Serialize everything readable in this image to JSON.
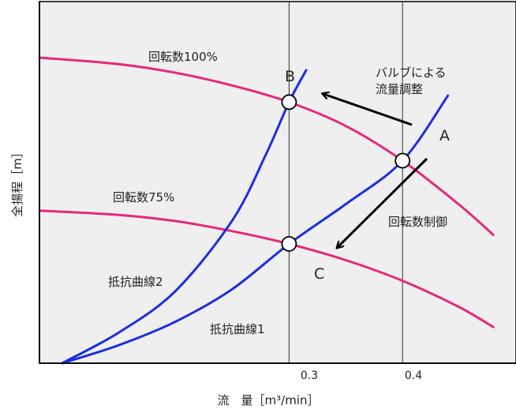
{
  "chart_data": {
    "type": "line",
    "title": "",
    "xlabel": "流　量［m³/min］",
    "ylabel": "全揚程［m］",
    "x_ticks": [
      {
        "value": 0.3,
        "label": "0.3"
      },
      {
        "value": 0.4,
        "label": "0.4"
      }
    ],
    "xlim": [
      0.08,
      0.5
    ],
    "ylim": [
      0,
      1
    ],
    "grid": false,
    "series": [
      {
        "name": "回転数100%",
        "kind": "pump",
        "color": "#e6287a",
        "x": [
          0.08,
          0.15,
          0.2,
          0.25,
          0.3,
          0.35,
          0.4,
          0.45,
          0.48
        ],
        "y": [
          0.845,
          0.827,
          0.803,
          0.768,
          0.722,
          0.656,
          0.56,
          0.438,
          0.355
        ]
      },
      {
        "name": "回転数75%",
        "kind": "pump",
        "color": "#e6287a",
        "x": [
          0.08,
          0.15,
          0.2,
          0.25,
          0.3,
          0.35,
          0.4,
          0.45,
          0.48
        ],
        "y": [
          0.422,
          0.41,
          0.393,
          0.365,
          0.33,
          0.285,
          0.228,
          0.155,
          0.1
        ]
      },
      {
        "name": "抵抗曲線1",
        "kind": "resistance",
        "color": "#1c2ee0",
        "x": [
          0.1,
          0.15,
          0.2,
          0.25,
          0.3,
          0.35,
          0.4,
          0.44
        ],
        "y": [
          0.0,
          0.05,
          0.115,
          0.205,
          0.33,
          0.44,
          0.56,
          0.74
        ]
      },
      {
        "name": "抵抗曲線2",
        "kind": "resistance",
        "color": "#1c2ee0",
        "x": [
          0.1,
          0.15,
          0.2,
          0.25,
          0.28,
          0.3,
          0.315
        ],
        "y": [
          0.0,
          0.085,
          0.2,
          0.395,
          0.58,
          0.722,
          0.81
        ]
      }
    ],
    "points": [
      {
        "label": "A",
        "x": 0.4,
        "y": 0.56
      },
      {
        "label": "B",
        "x": 0.3,
        "y": 0.722
      },
      {
        "label": "C",
        "x": 0.3,
        "y": 0.33
      }
    ],
    "annotations": [
      {
        "text_lines": [
          "バルブによる",
          "流量調整"
        ],
        "arrow": "A→B"
      },
      {
        "text_lines": [
          "回転数制御"
        ],
        "arrow": "A→C"
      }
    ],
    "colors": {
      "pump": "#e6287a",
      "resistance": "#1c2ee0",
      "plot_bg": "#efefef"
    }
  }
}
